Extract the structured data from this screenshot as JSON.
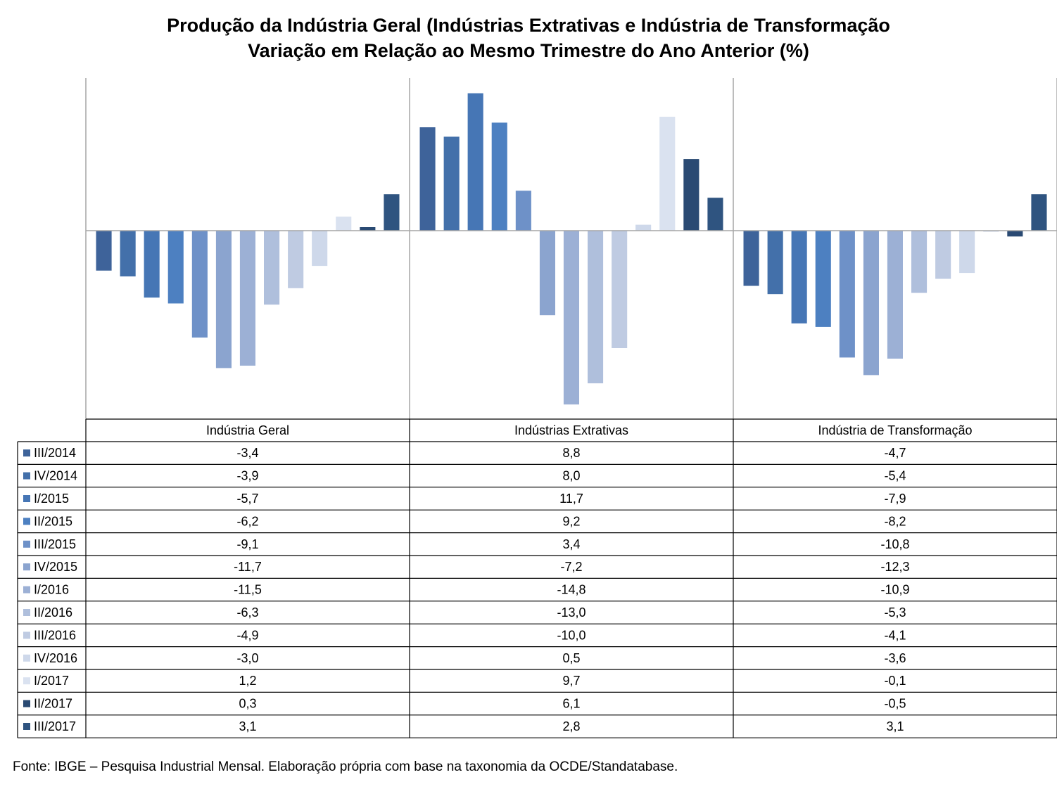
{
  "page": {
    "title_line1": "Produção da Indústria Geral (Indústrias Extrativas e Indústria de Transformação",
    "title_line2": "Variação em Relação ao Mesmo Trimestre do Ano Anterior (%)",
    "source": "Fonte: IBGE – Pesquisa Industrial Mensal. Elaboração própria com base na taxonomia da OCDE/Standatabase."
  },
  "chart_data": {
    "type": "bar",
    "title": "Produção da Indústria Geral (Indústrias Extrativas e Indústria de Transformação Variação em Relação ao Mesmo Trimestre do Ano Anterior (%)",
    "categories": [
      "Indústria Geral",
      "Indústrias Extrativas",
      "Indústria de Transformação"
    ],
    "ylim": [
      -16,
      13
    ],
    "grid": false,
    "legend": "left, in data table",
    "data_table": true,
    "series": [
      {
        "name": "III/2014",
        "values": [
          -3.4,
          8.8,
          -4.7
        ],
        "labels": [
          "-3,4",
          "8,8",
          "-4,7"
        ],
        "color": "#3e639a"
      },
      {
        "name": "IV/2014",
        "values": [
          -3.9,
          8.0,
          -5.4
        ],
        "labels": [
          "-3,9",
          "8,0",
          "-5,4"
        ],
        "color": "#4370aa"
      },
      {
        "name": "I/2015",
        "values": [
          -5.7,
          11.7,
          -7.9
        ],
        "labels": [
          "-5,7",
          "11,7",
          "-7,9"
        ],
        "color": "#4676b5"
      },
      {
        "name": "II/2015",
        "values": [
          -6.2,
          9.2,
          -8.2
        ],
        "labels": [
          "-6,2",
          "9,2",
          "-8,2"
        ],
        "color": "#4d80c1"
      },
      {
        "name": "III/2015",
        "values": [
          -9.1,
          3.4,
          -10.8
        ],
        "labels": [
          "-9,1",
          "3,4",
          "-10,8"
        ],
        "color": "#6e91c8"
      },
      {
        "name": "IV/2015",
        "values": [
          -11.7,
          -7.2,
          -12.3
        ],
        "labels": [
          "-11,7",
          "-7,2",
          "-12,3"
        ],
        "color": "#8ba4cf"
      },
      {
        "name": "I/2016",
        "values": [
          -11.5,
          -14.8,
          -10.9
        ],
        "labels": [
          "-11,5",
          "-14,8",
          "-10,9"
        ],
        "color": "#9cb0d5"
      },
      {
        "name": "II/2016",
        "values": [
          -6.3,
          -13.0,
          -5.3
        ],
        "labels": [
          "-6,3",
          "-13,0",
          "-5,3"
        ],
        "color": "#afbfdc"
      },
      {
        "name": "III/2016",
        "values": [
          -4.9,
          -10.0,
          -4.1
        ],
        "labels": [
          "-4,9",
          "-10,0",
          "-4,1"
        ],
        "color": "#bfcbe2"
      },
      {
        "name": "IV/2016",
        "values": [
          -3.0,
          0.5,
          -3.6
        ],
        "labels": [
          "-3,0",
          "0,5",
          "-3,6"
        ],
        "color": "#ced8ea"
      },
      {
        "name": "I/2017",
        "values": [
          1.2,
          9.7,
          -0.1
        ],
        "labels": [
          "1,2",
          "9,7",
          "-0,1"
        ],
        "color": "#dae2f0"
      },
      {
        "name": "II/2017",
        "values": [
          0.3,
          6.1,
          -0.5
        ],
        "labels": [
          "0,3",
          "6,1",
          "-0,5"
        ],
        "color": "#2a4a73"
      },
      {
        "name": "III/2017",
        "values": [
          3.1,
          2.8,
          3.1
        ],
        "labels": [
          "3,1",
          "2,8",
          "3,1"
        ],
        "color": "#2f5480"
      }
    ]
  }
}
